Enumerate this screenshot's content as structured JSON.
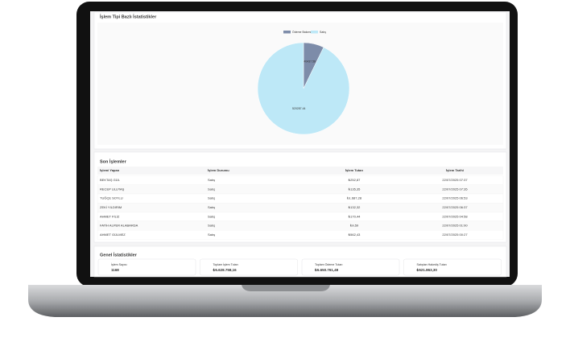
{
  "chart_data": {
    "type": "pie",
    "title": "İşlem Tipi Bazlı İstatistikler",
    "categories": [
      "Ödeme Bakımı",
      "Satış"
    ],
    "colors": [
      "#7d8ca9",
      "#bde8f7"
    ],
    "values": [
      40437.58,
      520287.44
    ]
  },
  "recent": {
    "title": "Son İşlemler",
    "columns": [
      "İşlemi Yapan",
      "İşlem Durumu",
      "İşlem Tutarı",
      "İşlem Tarihi"
    ],
    "rows": [
      [
        "BEKTAŞ GÜL",
        "Satış",
        "₺252,87",
        "22/07/2025 07:37"
      ],
      [
        "RECEP ULUTAŞ",
        "Satış",
        "₺135,35",
        "22/07/2025 07:35"
      ],
      [
        "TUĞÇE SOYLU",
        "Satış",
        "₺1.687,28",
        "22/07/2025 06:53"
      ],
      [
        "ZEKİ YILDIRIM",
        "Satış",
        "₺132,32",
        "22/07/2025 06:37"
      ],
      [
        "AHMET FİLİZ",
        "Satış",
        "₺170,44",
        "22/07/2025 04:58"
      ],
      [
        "FATİH ALPER ALABARDA",
        "Satış",
        "₺9,59",
        "22/07/2025 01:00"
      ],
      [
        "AHMET GÜLMEZ",
        "Satış",
        "₺562,43",
        "22/07/2025 00:27"
      ]
    ]
  },
  "stats": {
    "title": "Genel İstatistikler",
    "cards": [
      {
        "label": "İşlem Sayısı",
        "value": "1168"
      },
      {
        "label": "Toplam İşlem Tutarı",
        "value": "₺5.628.758,16"
      },
      {
        "label": "Toplam Ödeme Tutarı",
        "value": "₺5.650.761,48"
      },
      {
        "label": "Satıştan Hakediş Tutarı",
        "value": "₺521.863,30"
      }
    ]
  }
}
